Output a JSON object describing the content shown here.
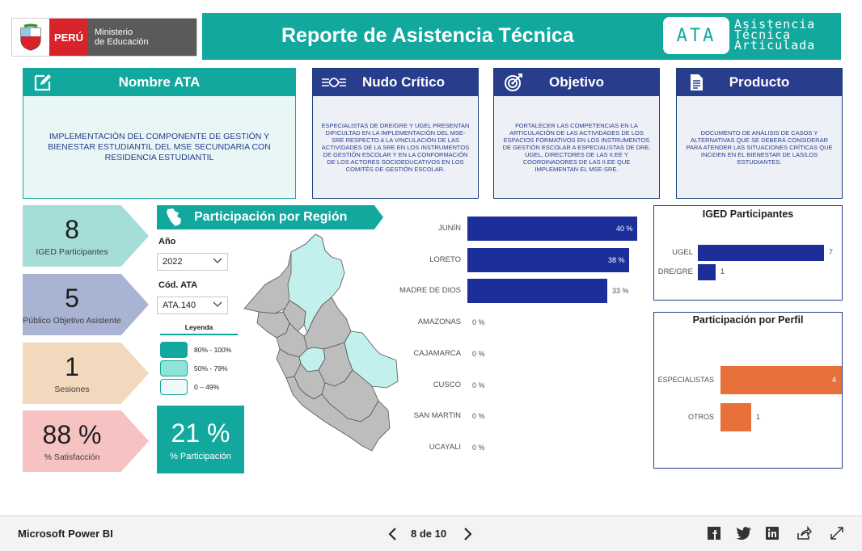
{
  "header": {
    "logo_peru": "PERÚ",
    "logo_ministry_line1": "Ministerio",
    "logo_ministry_line2": "de Educación",
    "title": "Reporte de Asistencia Técnica",
    "ata_badge": "ATA",
    "ata_words": [
      "Asistencia",
      "Técnica",
      "Articulada"
    ]
  },
  "cards": {
    "ata": {
      "title": "Nombre ATA",
      "body": "IMPLEMENTACIÓN DEL COMPONENTE DE GESTIÓN Y BIENESTAR ESTUDIANTIL DEL MSE  SECUNDARIA CON RESIDENCIA ESTUDIANTIL"
    },
    "nudo": {
      "title": "Nudo Crítico",
      "body": "ESPECIALISTAS DE DRE/GRE Y UGEL PRESENTAN DIFICULTAD EN LA IMPLEMENTACIÓN DEL MSE-SRE RESPECTO A LA VINCULACIÓN DE LAS ACTIVIDADES DE LA SRE EN LOS INSTRUMENTOS DE GESTIÓN ESCOLAR Y EN LA CONFORMACIÓN DE LOS ACTORES SOCIOEDUCATIVOS EN LOS COMITÉS DE GESTIÓN ESCOLAR."
    },
    "objetivo": {
      "title": "Objetivo",
      "body": "FORTALECER LAS COMPETENCIAS EN LA ARTICULACIÓN DE LAS ACTIVIDADES DE LOS ESPACIOS FORMATIVOS EN LOS INSTRUMENTOS DE GESTIÓN ESCOLAR A ESPECIALISTAS DE DRE, UGEL, DIRECTORES DE LAS II.EE Y COORDINADORES DE LAS II.EE QUE IMPLEMENTAN EL MSE-SRE."
    },
    "producto": {
      "title": "Producto",
      "body": "DOCUMENTO DE ANÁLISIS DE CASOS Y ALTERNATIVAS QUE SE DEBERÁ CONSIDERAR PARA ATENDER LAS SITUACIONES CRÍTICAS QUE INCIDEN EN EL BIENESTAR DE LAS/LOS ESTUDIANTES."
    }
  },
  "kpis": [
    {
      "value": "8",
      "label": "IGED Participantes",
      "color": "#a5ded8"
    },
    {
      "value": "5",
      "label": "Público Objetivo Asistente",
      "color": "#a9b4d4"
    },
    {
      "value": "1",
      "label": "Sesiones",
      "color": "#f2d8bd"
    },
    {
      "value": "88 %",
      "label": "% Satisfacción",
      "color": "#f7c2c2"
    }
  ],
  "participation": {
    "title": "Participación por Región",
    "year_label": "Año",
    "year_value": "2022",
    "code_label": "Cód. ATA",
    "code_value": "ATA.140",
    "legend_title": "Leyenda",
    "legend": [
      {
        "label": "80% - 100%",
        "color": "#13a89e"
      },
      {
        "label": "50% - 79%",
        "color": "#8fe3d9"
      },
      {
        "label": "0 – 49%",
        "color": "#eefaf9"
      }
    ],
    "pct_value": "21 %",
    "pct_label": "% Participación"
  },
  "chart_data": [
    {
      "type": "bar",
      "orientation": "horizontal",
      "categories": [
        "JUNÍN",
        "LORETO",
        "MADRE DE DIOS",
        "AMAZONAS",
        "CAJAMARCA",
        "CUSCO",
        "SAN MARTIN",
        "UCAYALI"
      ],
      "values": [
        40,
        38,
        33,
        0,
        0,
        0,
        0,
        0
      ],
      "value_labels": [
        "40 %",
        "38 %",
        "33 %",
        "0 %",
        "0 %",
        "0 %",
        "0 %",
        "0 %"
      ],
      "max": 40,
      "color": "#1c2e99"
    },
    {
      "type": "bar",
      "orientation": "horizontal",
      "title": "IGED Participantes",
      "categories": [
        "UGEL",
        "DRE/GRE"
      ],
      "values": [
        7,
        1
      ],
      "max": 7,
      "color": "#1c2e99"
    },
    {
      "type": "bar",
      "orientation": "horizontal",
      "title": "Participación por Perfil",
      "categories": [
        "ESPECIALISTAS",
        "OTROS"
      ],
      "values": [
        4,
        1
      ],
      "max": 4,
      "color": "#e8703a"
    }
  ],
  "footer": {
    "brand": "Microsoft Power BI",
    "page": "8 de 10"
  }
}
